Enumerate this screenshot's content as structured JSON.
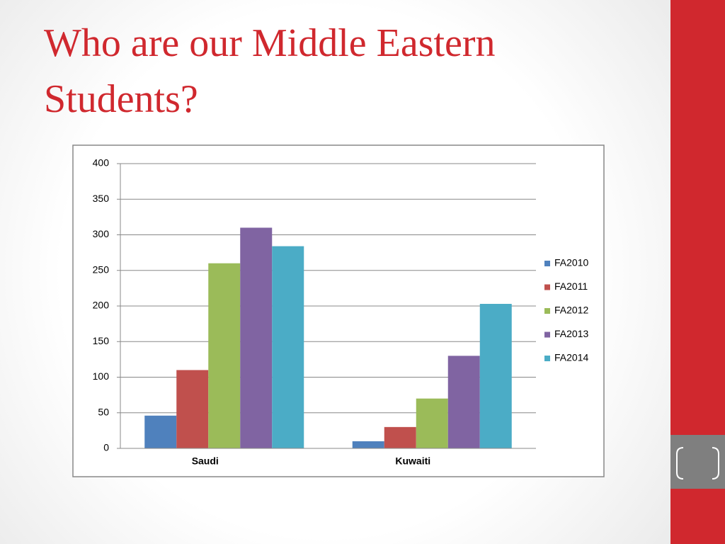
{
  "title": "Who are our Middle Eastern Students?",
  "chart_data": {
    "type": "bar",
    "categories": [
      "Saudi",
      "Kuwaiti"
    ],
    "series": [
      {
        "name": "FA2010",
        "color": "#4f81bd",
        "values": [
          46,
          10
        ]
      },
      {
        "name": "FA2011",
        "color": "#c0504d",
        "values": [
          110,
          30
        ]
      },
      {
        "name": "FA2012",
        "color": "#9bbb59",
        "values": [
          260,
          70
        ]
      },
      {
        "name": "FA2013",
        "color": "#8064a2",
        "values": [
          310,
          130
        ]
      },
      {
        "name": "FA2014",
        "color": "#4bacc6",
        "values": [
          284,
          203
        ]
      }
    ],
    "ylim": [
      0,
      400
    ],
    "yticks": [
      0,
      50,
      100,
      150,
      200,
      250,
      300,
      350,
      400
    ],
    "grid": true,
    "legend": "right"
  }
}
